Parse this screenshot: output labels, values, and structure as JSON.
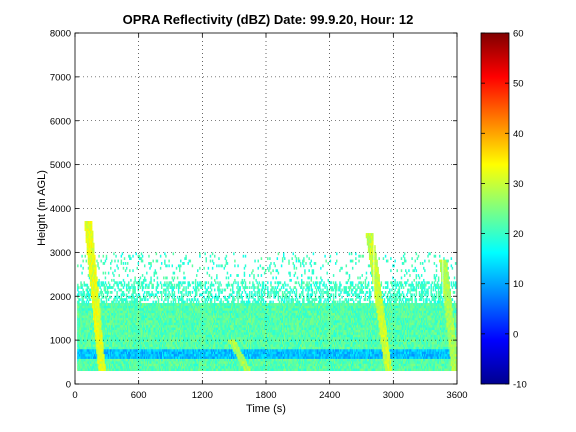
{
  "chart_data": {
    "type": "heatmap",
    "title": "OPRA Reflectivity (dBZ)  Date: 99.9.20, Hour: 12",
    "xlabel": "Time (s)",
    "ylabel": "Height (m AGL)",
    "xlim": [
      0,
      3600
    ],
    "ylim": [
      0,
      8000
    ],
    "xticks": [
      "0",
      "600",
      "1200",
      "1800",
      "2400",
      "3000",
      "3600"
    ],
    "yticks": [
      "0",
      "1000",
      "2000",
      "3000",
      "4000",
      "5000",
      "6000",
      "7000",
      "8000"
    ],
    "grid": true,
    "colorbar": {
      "range": [
        -10,
        60
      ],
      "ticks": [
        "-10",
        "0",
        "10",
        "20",
        "30",
        "40",
        "50",
        "60"
      ],
      "colormap": "jet"
    },
    "echo_layers": [
      {
        "height_range": [
          300,
          1800
        ],
        "typical_dBZ": 22
      },
      {
        "height_range": [
          550,
          750
        ],
        "typical_dBZ": 12
      },
      {
        "height_range": [
          1800,
          3000
        ],
        "typical_dBZ": 20,
        "coverage": "patchy"
      }
    ],
    "enhanced_streaks": [
      {
        "time": [
          100,
          250
        ],
        "height": [
          300,
          3700
        ],
        "dBZ": 32
      },
      {
        "time": [
          1450,
          1620
        ],
        "height": [
          300,
          1000
        ],
        "dBZ": 28
      },
      {
        "time": [
          2750,
          2950
        ],
        "height": [
          300,
          3400
        ],
        "dBZ": 30
      },
      {
        "time": [
          3450,
          3580
        ],
        "height": [
          300,
          2800
        ],
        "dBZ": 28
      }
    ]
  }
}
